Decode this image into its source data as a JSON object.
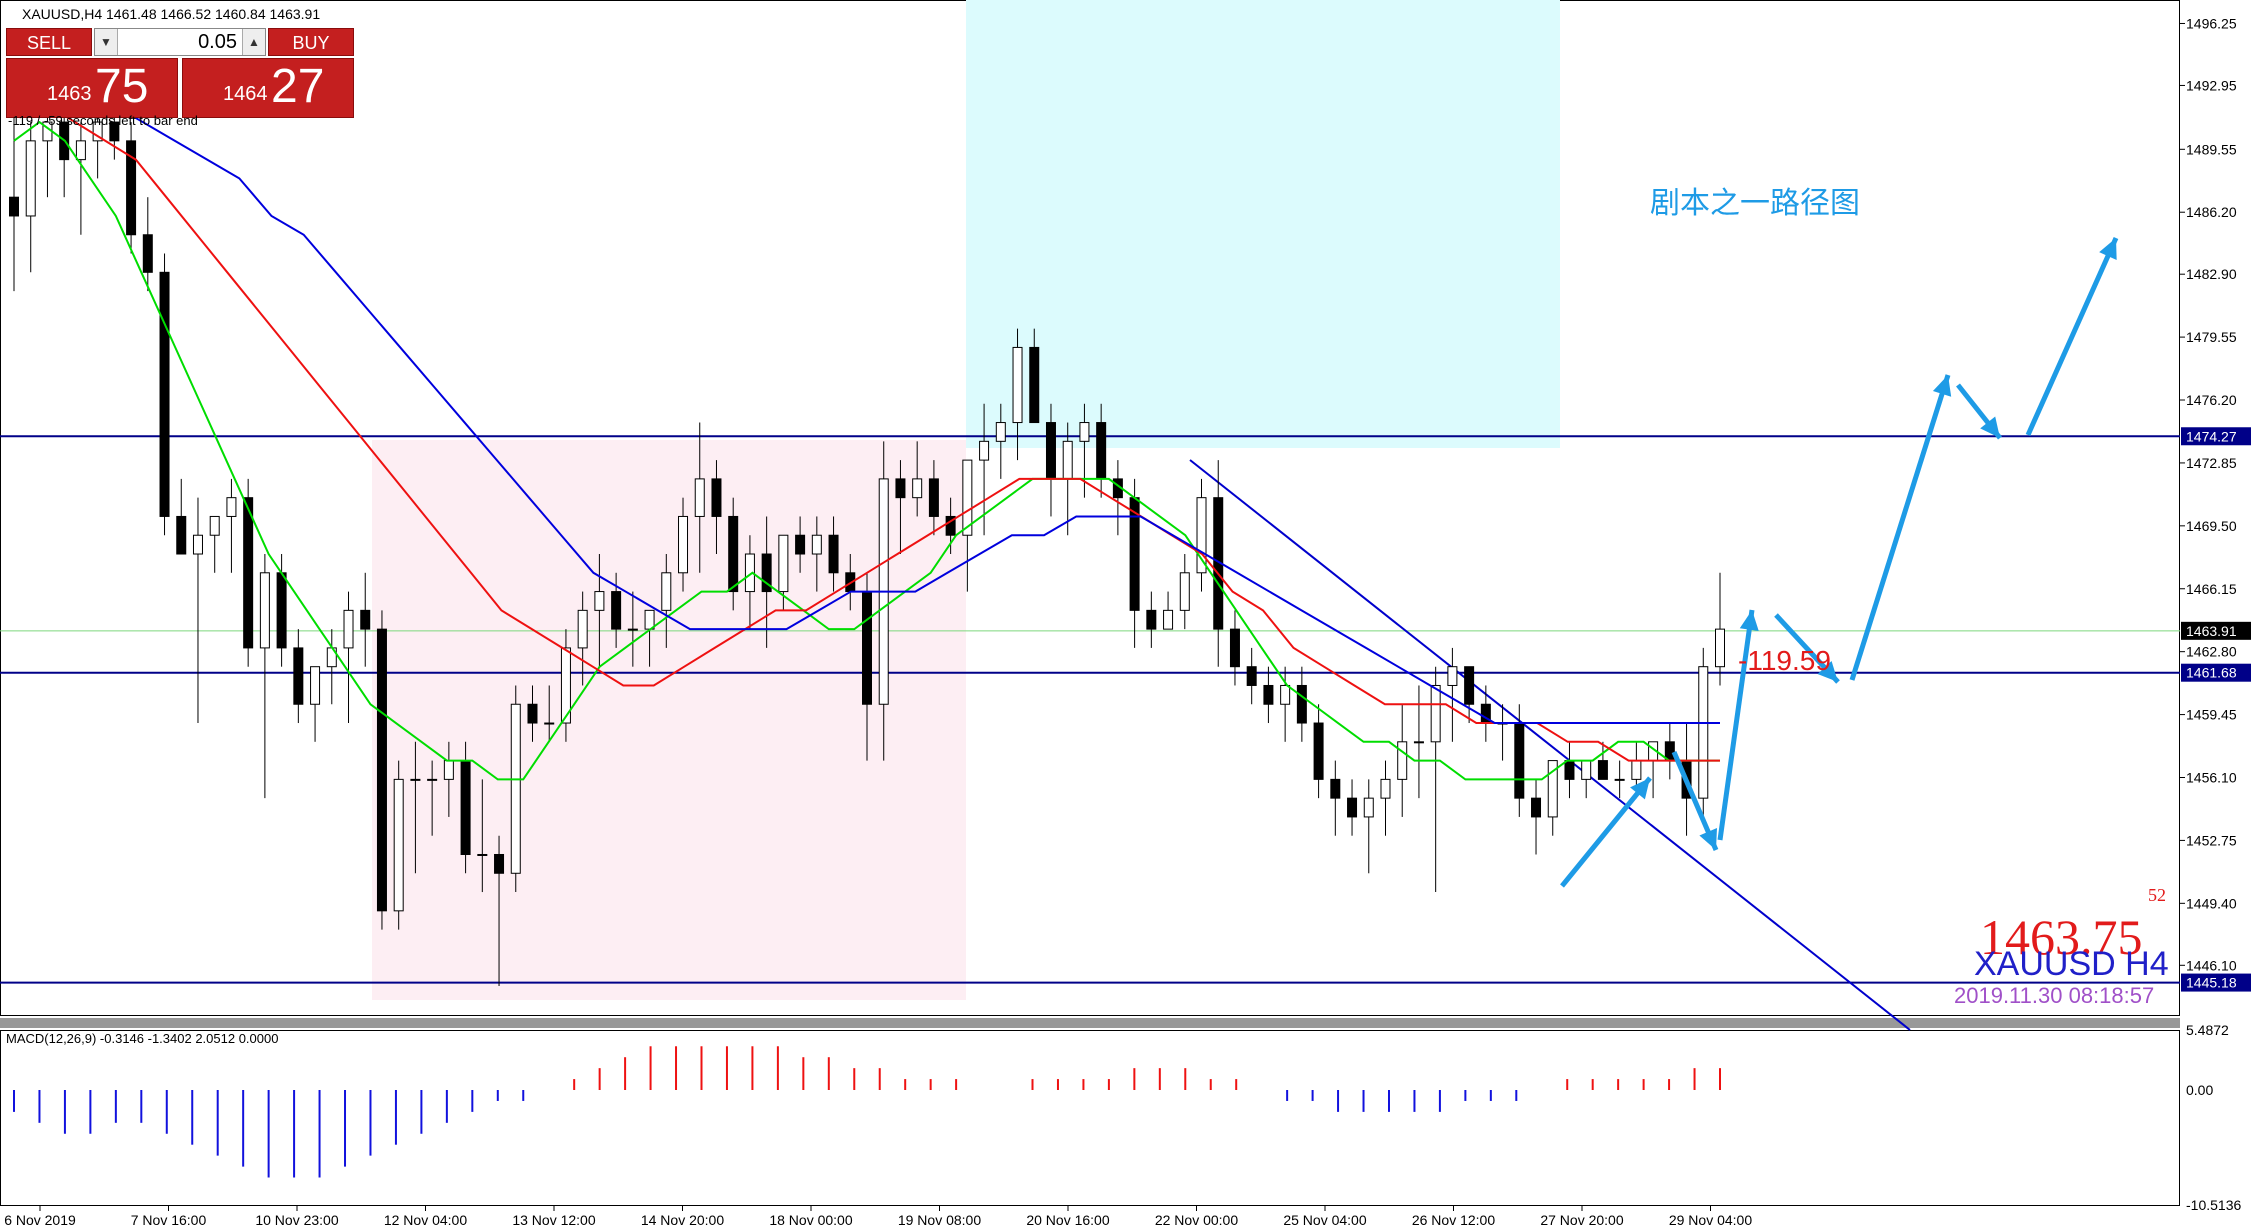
{
  "window": {
    "symbol_title": "XAUUSD,H4  1461.48 1466.52 1460.84 1463.91",
    "countdown": "-119 / -59 seconds left to bar end"
  },
  "trade_panel": {
    "sell_label": "SELL",
    "buy_label": "BUY",
    "lot": "0.05",
    "sell_price_big": "1463",
    "sell_price_pips": "75",
    "buy_price_big": "1464",
    "buy_price_pips": "27"
  },
  "annotation": "剧本之一路径图",
  "pips_label": "-119.59",
  "info_overlay": {
    "current_price": "1463.75",
    "current_price_small": "52",
    "symbol": "XAUUSD H4",
    "timestamp": "2019.11.30 08:18:57"
  },
  "macd_label": "MACD(12,26,9) -0.3146 -1.3402 2.0512 0.0000",
  "colors": {
    "bull": "#ffffff",
    "bear": "#000000",
    "ma_fast": "#00dd00",
    "ma_mid": "#ee1111",
    "ma_slow": "#0000dd",
    "levels": "#000088",
    "arrows": "#1e9be6",
    "pink_zone": "#fdeef3",
    "cyan_zone": "#dcfbfd"
  },
  "chart_data": {
    "type": "candlestick",
    "title": "XAUUSD,H4",
    "ylim": [
      1443.4,
      1497.5
    ],
    "y_ticks": [
      "1496.25",
      "1492.95",
      "1489.55",
      "1486.20",
      "1482.90",
      "1479.55",
      "1476.20",
      "1472.85",
      "1469.50",
      "1466.15",
      "1462.80",
      "1459.45",
      "1456.10",
      "1452.75",
      "1449.40",
      "1446.10"
    ],
    "x_ticks": [
      "6 Nov 2019",
      "7 Nov 16:00",
      "10 Nov 23:00",
      "12 Nov 04:00",
      "13 Nov 12:00",
      "14 Nov 20:00",
      "18 Nov 00:00",
      "19 Nov 08:00",
      "20 Nov 16:00",
      "22 Nov 00:00",
      "25 Nov 04:00",
      "26 Nov 12:00",
      "27 Nov 20:00",
      "29 Nov 04:00"
    ],
    "price_labels": {
      "current": "1463.91",
      "level_upper": "1474.27",
      "level_mid": "1461.68",
      "level_lower": "1445.18"
    },
    "levels": [
      1474.27,
      1461.68,
      1445.18
    ],
    "candles": [
      [
        1487,
        1492,
        1482,
        1486
      ],
      [
        1486,
        1491,
        1483,
        1490
      ],
      [
        1490,
        1493,
        1487,
        1491
      ],
      [
        1491,
        1492,
        1487,
        1489
      ],
      [
        1489,
        1491,
        1485,
        1490
      ],
      [
        1490,
        1492,
        1488,
        1491
      ],
      [
        1491,
        1492,
        1489,
        1490
      ],
      [
        1490,
        1491,
        1484,
        1485
      ],
      [
        1485,
        1487,
        1482,
        1483
      ],
      [
        1483,
        1484,
        1469,
        1470
      ],
      [
        1470,
        1472,
        1468,
        1468
      ],
      [
        1468,
        1471,
        1459,
        1469
      ],
      [
        1469,
        1470,
        1467,
        1470
      ],
      [
        1470,
        1472,
        1467,
        1471
      ],
      [
        1471,
        1472,
        1462,
        1463
      ],
      [
        1463,
        1468,
        1455,
        1467
      ],
      [
        1467,
        1468,
        1462,
        1463
      ],
      [
        1463,
        1464,
        1459,
        1460
      ],
      [
        1460,
        1462,
        1458,
        1462
      ],
      [
        1462,
        1464,
        1460,
        1463
      ],
      [
        1463,
        1466,
        1459,
        1465
      ],
      [
        1465,
        1467,
        1462,
        1464
      ],
      [
        1464,
        1465,
        1448,
        1449
      ],
      [
        1449,
        1457,
        1448,
        1456
      ],
      [
        1456,
        1458,
        1451,
        1456
      ],
      [
        1456,
        1457,
        1453,
        1456
      ],
      [
        1456,
        1458,
        1454,
        1457
      ],
      [
        1457,
        1458,
        1451,
        1452
      ],
      [
        1452,
        1456,
        1450,
        1452
      ],
      [
        1452,
        1453,
        1445,
        1451
      ],
      [
        1451,
        1461,
        1450,
        1460
      ],
      [
        1460,
        1461,
        1458,
        1459
      ],
      [
        1459,
        1461,
        1458,
        1459
      ],
      [
        1459,
        1464,
        1458,
        1463
      ],
      [
        1463,
        1466,
        1461,
        1465
      ],
      [
        1465,
        1468,
        1462,
        1466
      ],
      [
        1466,
        1467,
        1463,
        1464
      ],
      [
        1464,
        1466,
        1462,
        1464
      ],
      [
        1464,
        1465,
        1462,
        1465
      ],
      [
        1465,
        1468,
        1463,
        1467
      ],
      [
        1467,
        1471,
        1466,
        1470
      ],
      [
        1470,
        1475,
        1467,
        1472
      ],
      [
        1472,
        1473,
        1468,
        1470
      ],
      [
        1470,
        1471,
        1465,
        1466
      ],
      [
        1466,
        1469,
        1464,
        1468
      ],
      [
        1468,
        1470,
        1463,
        1466
      ],
      [
        1466,
        1469,
        1465,
        1469
      ],
      [
        1469,
        1470,
        1467,
        1468
      ],
      [
        1468,
        1470,
        1466,
        1469
      ],
      [
        1469,
        1470,
        1466,
        1467
      ],
      [
        1467,
        1468,
        1465,
        1466
      ],
      [
        1466,
        1467,
        1457,
        1460
      ],
      [
        1460,
        1474,
        1457,
        1472
      ],
      [
        1472,
        1473,
        1468,
        1471
      ],
      [
        1471,
        1474,
        1470,
        1472
      ],
      [
        1472,
        1473,
        1469,
        1470
      ],
      [
        1470,
        1471,
        1468,
        1469
      ],
      [
        1469,
        1473,
        1466,
        1473
      ],
      [
        1473,
        1476,
        1469,
        1474
      ],
      [
        1474,
        1476,
        1472,
        1475
      ],
      [
        1475,
        1480,
        1473,
        1479
      ],
      [
        1479,
        1480,
        1475,
        1475
      ],
      [
        1475,
        1476,
        1470,
        1472
      ],
      [
        1472,
        1475,
        1469,
        1474
      ],
      [
        1474,
        1476,
        1471,
        1475
      ],
      [
        1475,
        1476,
        1471,
        1472
      ],
      [
        1472,
        1473,
        1469,
        1471
      ],
      [
        1471,
        1472,
        1463,
        1465
      ],
      [
        1465,
        1466,
        1463,
        1464
      ],
      [
        1464,
        1466,
        1464,
        1465
      ],
      [
        1465,
        1468,
        1464,
        1467
      ],
      [
        1467,
        1472,
        1466,
        1471
      ],
      [
        1471,
        1473,
        1462,
        1464
      ],
      [
        1464,
        1465,
        1461,
        1462
      ],
      [
        1462,
        1463,
        1460,
        1461
      ],
      [
        1461,
        1462,
        1459,
        1460
      ],
      [
        1460,
        1462,
        1458,
        1461
      ],
      [
        1461,
        1462,
        1458,
        1459
      ],
      [
        1459,
        1460,
        1455,
        1456
      ],
      [
        1456,
        1457,
        1453,
        1455
      ],
      [
        1455,
        1456,
        1453,
        1454
      ],
      [
        1454,
        1456,
        1451,
        1455
      ],
      [
        1455,
        1457,
        1453,
        1456
      ],
      [
        1456,
        1460,
        1454,
        1458
      ],
      [
        1458,
        1461,
        1455,
        1458
      ],
      [
        1458,
        1462,
        1450,
        1461
      ],
      [
        1461,
        1463,
        1458,
        1462
      ],
      [
        1462,
        1462,
        1459,
        1460
      ],
      [
        1460,
        1461,
        1458,
        1459
      ],
      [
        1459,
        1460,
        1457,
        1459
      ],
      [
        1459,
        1460,
        1454,
        1455
      ],
      [
        1455,
        1456,
        1452,
        1454
      ],
      [
        1454,
        1457,
        1453,
        1457
      ],
      [
        1457,
        1458,
        1455,
        1456
      ],
      [
        1456,
        1457,
        1455,
        1457
      ],
      [
        1457,
        1458,
        1456,
        1456
      ],
      [
        1456,
        1457,
        1455,
        1456
      ],
      [
        1456,
        1458,
        1455,
        1457
      ],
      [
        1457,
        1458,
        1455,
        1458
      ],
      [
        1458,
        1459,
        1456,
        1457
      ],
      [
        1457,
        1459,
        1453,
        1455
      ],
      [
        1455,
        1463,
        1454,
        1462
      ],
      [
        1462,
        1467,
        1461,
        1464
      ]
    ],
    "ma_fast": [
      1490,
      1491,
      1490,
      1488,
      1486,
      1483,
      1480,
      1477,
      1474,
      1471,
      1468,
      1466,
      1464,
      1462,
      1460,
      1459,
      1458,
      1457,
      1457,
      1456,
      1456,
      1458,
      1460,
      1462,
      1463,
      1464,
      1465,
      1466,
      1466,
      1467,
      1466,
      1465,
      1464,
      1464,
      1465,
      1466,
      1467,
      1469,
      1470,
      1471,
      1472,
      1472,
      1472,
      1472,
      1471,
      1470,
      1469,
      1467,
      1465,
      1463,
      1461,
      1460,
      1459,
      1458,
      1458,
      1457,
      1457,
      1456,
      1456,
      1456,
      1456,
      1457,
      1457,
      1458,
      1458,
      1457,
      1457,
      1457
    ],
    "ma_mid": [
      1492,
      1492,
      1491,
      1490,
      1489,
      1487,
      1485,
      1483,
      1481,
      1479,
      1477,
      1475,
      1473,
      1471,
      1469,
      1467,
      1465,
      1464,
      1463,
      1462,
      1461,
      1461,
      1462,
      1463,
      1464,
      1465,
      1465,
      1466,
      1467,
      1468,
      1469,
      1470,
      1471,
      1472,
      1472,
      1472,
      1471,
      1470,
      1469,
      1468,
      1466,
      1465,
      1463,
      1462,
      1461,
      1460,
      1460,
      1460,
      1459,
      1459,
      1459,
      1458,
      1458,
      1457,
      1457,
      1457,
      1457
    ],
    "ma_slow": [
      1494,
      1494,
      1493,
      1492,
      1491,
      1490,
      1489,
      1488,
      1486,
      1485,
      1483,
      1481,
      1479,
      1477,
      1475,
      1473,
      1471,
      1469,
      1467,
      1466,
      1465,
      1464,
      1464,
      1464,
      1464,
      1465,
      1466,
      1466,
      1466,
      1467,
      1468,
      1469,
      1469,
      1470,
      1470,
      1470,
      1469,
      1468,
      1467,
      1466,
      1465,
      1464,
      1463,
      1462,
      1461,
      1460,
      1459,
      1459,
      1459,
      1459,
      1459,
      1459,
      1459,
      1459
    ],
    "macd": {
      "ylim": [
        -10.5136,
        5.4872
      ],
      "y_ticks": [
        "5.4872",
        "0.00",
        "-10.5136"
      ],
      "histogram": [
        -2,
        -3,
        -4,
        -4,
        -3,
        -3,
        -4,
        -5,
        -6,
        -7,
        -8,
        -8,
        -8,
        -7,
        -6,
        -5,
        -4,
        -3,
        -2,
        -1,
        -1,
        0,
        1,
        2,
        3,
        4,
        4,
        4,
        4,
        4,
        4,
        3,
        3,
        2,
        2,
        1,
        1,
        1,
        0,
        0,
        1,
        1,
        1,
        1,
        2,
        2,
        2,
        1,
        1,
        0,
        -1,
        -1,
        -2,
        -2,
        -2,
        -2,
        -2,
        -1,
        -1,
        -1,
        0,
        1,
        1,
        1,
        1,
        1,
        2,
        2
      ]
    }
  }
}
